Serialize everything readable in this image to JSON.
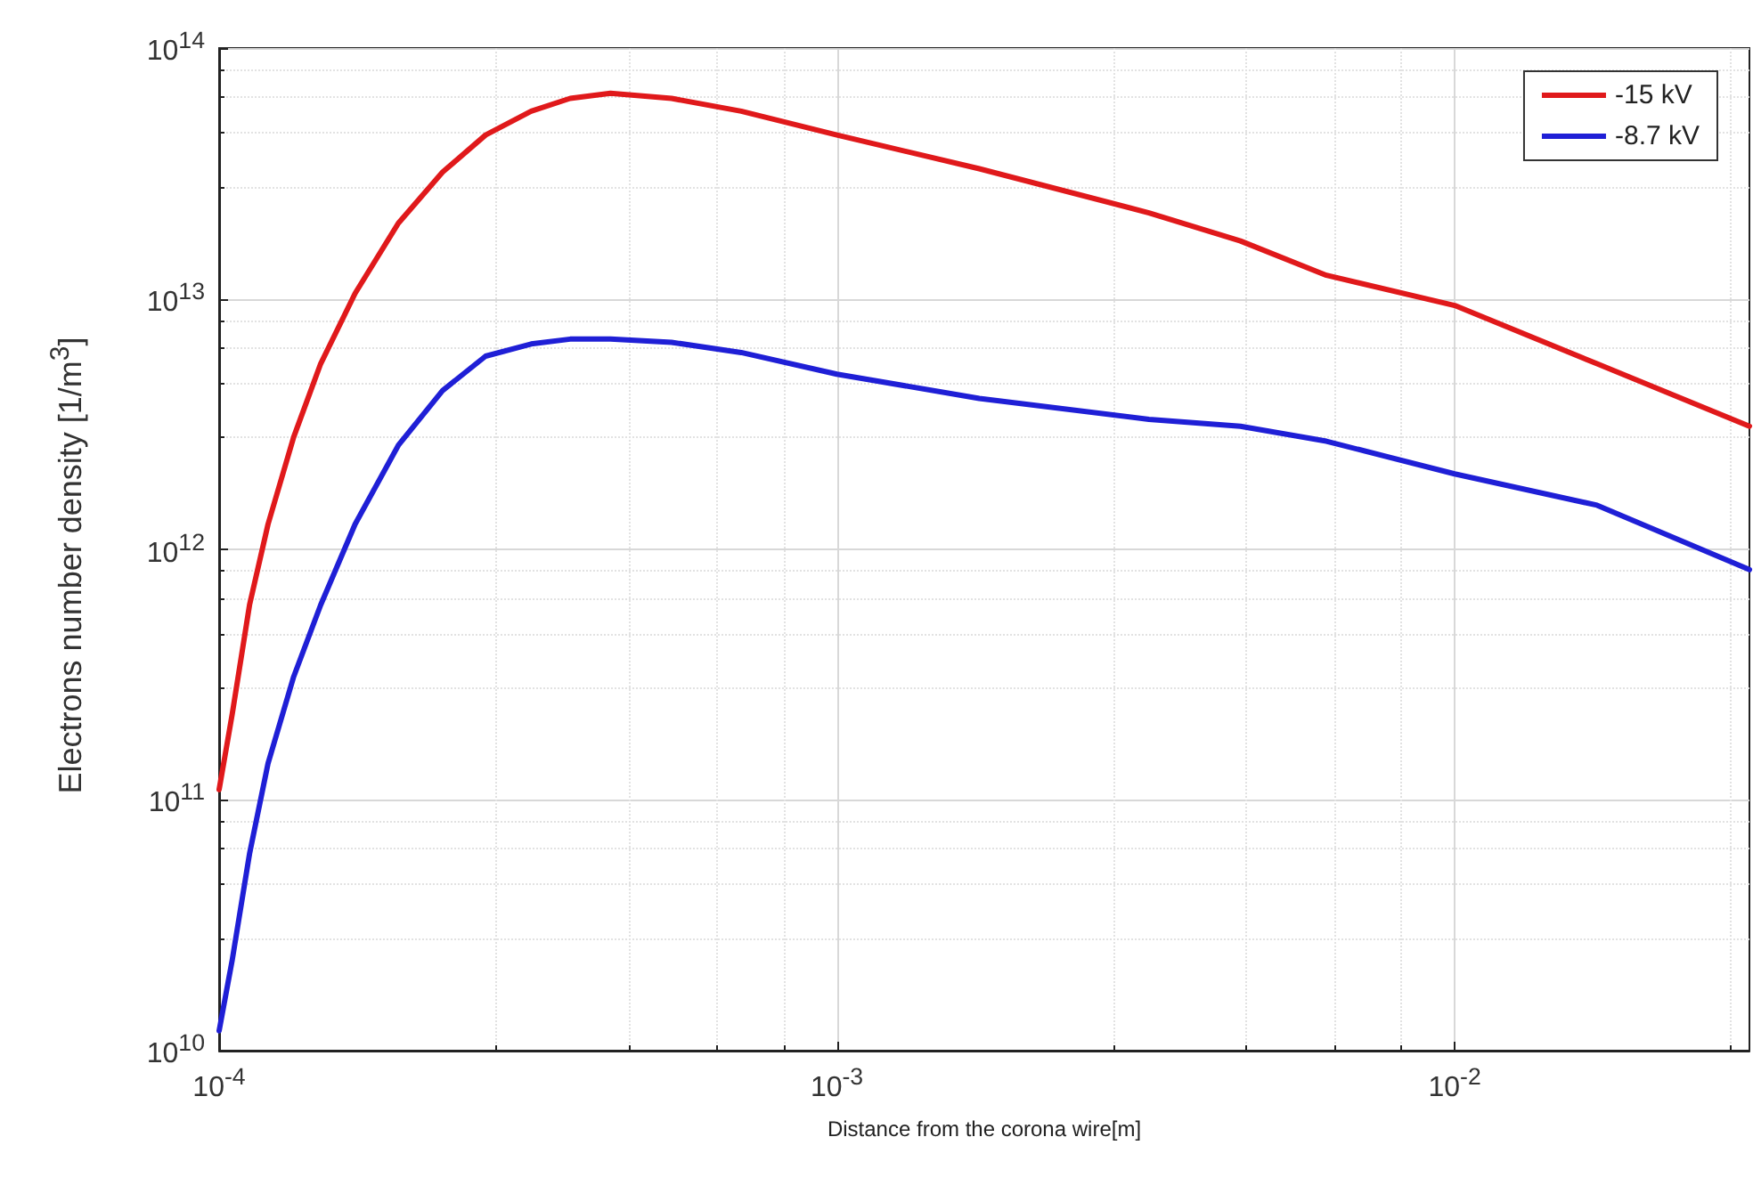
{
  "chart_data": {
    "type": "line",
    "xlabel": "Distance from the corona wire[m]",
    "ylabel": "Electrons number density [1/m$^{3}$]",
    "log": "xy",
    "xlim": [
      0.0001,
      0.03
    ],
    "ylim": [
      10000000000,
      100000000000000
    ],
    "xticks": [
      {
        "value": 0.0001,
        "label": "10$^{-4}$"
      },
      {
        "value": 0.001,
        "label": "10$^{-3}$"
      },
      {
        "value": 0.01,
        "label": "10$^{-2}$"
      }
    ],
    "yticks": [
      {
        "value": 10000000000,
        "label": "10$^{10}$"
      },
      {
        "value": 100000000000,
        "label": "10$^{11}$"
      },
      {
        "value": 1000000000000,
        "label": "10$^{12}$"
      },
      {
        "value": 10000000000000,
        "label": "10$^{13}$"
      },
      {
        "value": 100000000000000,
        "label": "10$^{14}$"
      }
    ],
    "x": [
      0.0001,
      0.000105,
      0.000112,
      0.00012,
      0.000132,
      0.000146,
      0.000166,
      0.000195,
      0.00023,
      0.00027,
      0.00032,
      0.00037,
      0.00043,
      0.00054,
      0.0007,
      0.001,
      0.0017,
      0.0032,
      0.0045,
      0.0062,
      0.01,
      0.017,
      0.03
    ],
    "grid": true,
    "legend": "top right",
    "marker": "none",
    "line_style": "solid",
    "series": [
      {
        "name": "-15 kV",
        "color": "#e0191b",
        "values": [
          110000000000.0,
          220000000000.0,
          600000000000.0,
          1260000000000.0,
          2800000000000.0,
          5500000000000.0,
          10500000000000.0,
          20000000000000.0,
          32000000000000.0,
          45000000000000.0,
          56000000000000.0,
          63000000000000.0,
          66000000000000.0,
          63000000000000.0,
          56000000000000.0,
          45000000000000.0,
          33000000000000.0,
          22000000000000.0,
          17000000000000.0,
          12400000000000.0,
          9400000000000.0,
          5500000000000.0,
          3100000000000.0
        ]
      },
      {
        "name": "-8.7 kV",
        "color": "#1f1fd6",
        "values": [
          12000000000.0,
          23000000000.0,
          61000000000.0,
          140000000000.0,
          310000000000.0,
          600000000000.0,
          1260000000000.0,
          2600000000000.0,
          4300000000000.0,
          5900000000000.0,
          6600000000000.0,
          6900000000000.0,
          6900000000000.0,
          6700000000000.0,
          6100000000000.0,
          5000000000000.0,
          4000000000000.0,
          3300000000000.0,
          3100000000000.0,
          2700000000000.0,
          2000000000000.0,
          1500000000000.0,
          830000000000.0
        ]
      }
    ]
  }
}
